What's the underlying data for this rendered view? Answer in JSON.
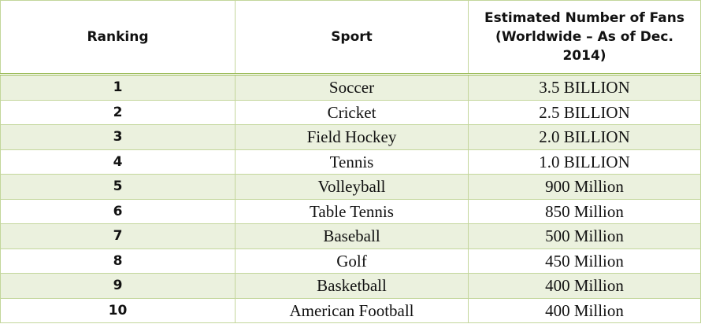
{
  "table": {
    "header": [
      "Ranking",
      "Sport",
      "Estimated Number of Fans (Worldwide – As of Dec. 2014)"
    ],
    "rows": [
      [
        1,
        "Soccer",
        "3.5 BILLION"
      ],
      [
        2,
        "Cricket",
        "2.5 BILLION"
      ],
      [
        3,
        "Field Hockey",
        "2.0 BILLION"
      ],
      [
        4,
        "Tennis",
        "1.0 BILLION"
      ],
      [
        5,
        "Volleyball",
        "900 Million"
      ],
      [
        6,
        "Table Tennis",
        "850 Million"
      ],
      [
        7,
        "Baseball",
        "500 Million"
      ],
      [
        8,
        "Golf",
        "450 Million"
      ],
      [
        9,
        "Basketball",
        "400 Million"
      ],
      [
        10,
        "American Football",
        "400 Million"
      ]
    ]
  }
}
